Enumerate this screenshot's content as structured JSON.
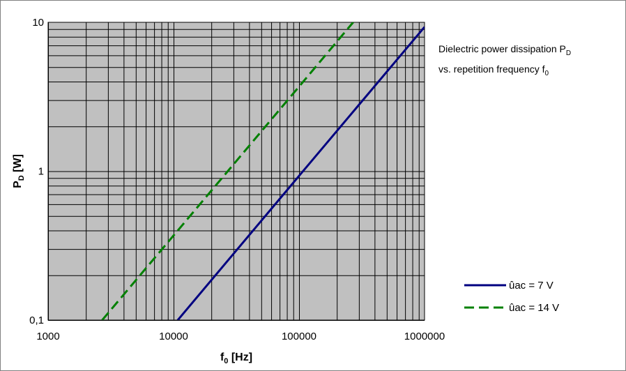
{
  "chart_data": {
    "type": "line",
    "x_scale": "log",
    "y_scale": "log",
    "xlim": [
      1000,
      1000000
    ],
    "ylim": [
      0.1,
      10
    ],
    "grid": true,
    "background_color": "#c0c0c0",
    "grid_color": "#000000",
    "xlabel": {
      "main": "f",
      "sub": "0",
      "unit": " [Hz]"
    },
    "ylabel": {
      "main": "P",
      "sub": "D",
      "unit": " [W]"
    },
    "x_ticks": [
      {
        "value": 1000,
        "label": "1000"
      },
      {
        "value": 10000,
        "label": "10000"
      },
      {
        "value": 100000,
        "label": "100000"
      },
      {
        "value": 1000000,
        "label": "1000000"
      }
    ],
    "y_ticks": [
      {
        "value": 0.1,
        "label": "0,1"
      },
      {
        "value": 1,
        "label": "1"
      },
      {
        "value": 10,
        "label": "10"
      }
    ],
    "annotation": {
      "line1": {
        "text": "Dielectric power dissipation P",
        "sub": "D"
      },
      "line2": {
        "text": "vs. repetition frequency f",
        "sub": "0"
      }
    },
    "legend": {
      "placement": "right"
    },
    "series": [
      {
        "name": "ûac = 7 V",
        "color": "#000080",
        "dash": "solid",
        "points": [
          [
            10800,
            0.1
          ],
          [
            100000,
            0.93
          ],
          [
            1000000,
            9.3
          ]
        ]
      },
      {
        "name": "ûac = 14 V",
        "color": "#008000",
        "dash": "dashed",
        "points": [
          [
            2700,
            0.1
          ],
          [
            10000,
            0.37
          ],
          [
            100000,
            3.7
          ],
          [
            270000,
            10
          ]
        ]
      }
    ]
  }
}
